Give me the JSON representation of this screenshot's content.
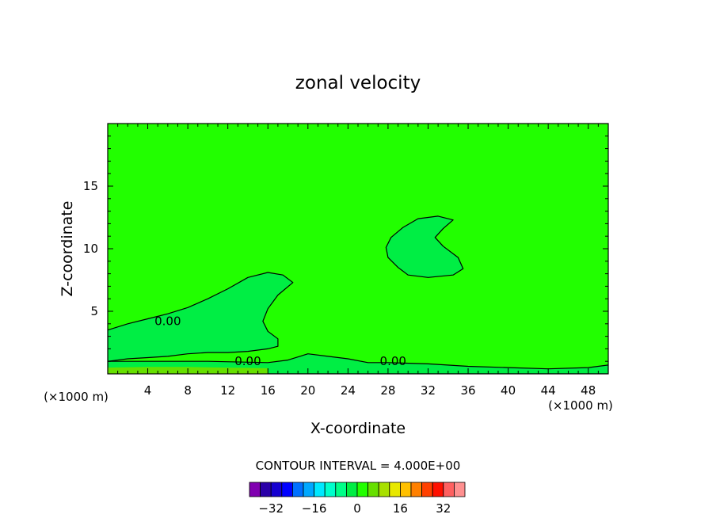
{
  "chart_data": {
    "type": "contour",
    "title": "zonal velocity",
    "xlabel": "X-coordinate",
    "ylabel": "Z-coordinate",
    "x_unit_left": "(×1000 m)",
    "x_unit_right": "(×1000 m)",
    "xlim": [
      0,
      50
    ],
    "ylim": [
      0,
      20
    ],
    "x_ticks": [
      4,
      8,
      12,
      16,
      20,
      24,
      28,
      32,
      36,
      40,
      44,
      48
    ],
    "y_ticks": [
      5,
      10,
      15
    ],
    "contour_labels": [
      {
        "text": "0.00",
        "x": 6,
        "y": 4.2
      },
      {
        "text": "0.00",
        "x": 14,
        "y": 1.0
      },
      {
        "text": "0.00",
        "x": 28.5,
        "y": 1.0
      }
    ],
    "regions": [
      {
        "name": "background",
        "value": 2,
        "color": "#22ff00"
      },
      {
        "name": "lower-left-lobe",
        "value": -2,
        "color": "#00ee44",
        "outline": [
          [
            0,
            3.5
          ],
          [
            2,
            4.0
          ],
          [
            4,
            4.4
          ],
          [
            6,
            4.8
          ],
          [
            8,
            5.3
          ],
          [
            10,
            6.0
          ],
          [
            12,
            6.8
          ],
          [
            14,
            7.7
          ],
          [
            16,
            8.1
          ],
          [
            17.5,
            7.9
          ],
          [
            18.5,
            7.3
          ],
          [
            17,
            6.3
          ],
          [
            16,
            5.2
          ],
          [
            15.5,
            4.2
          ],
          [
            16,
            3.4
          ],
          [
            17,
            2.8
          ],
          [
            17,
            2.2
          ],
          [
            16,
            2.0
          ],
          [
            14,
            1.8
          ],
          [
            12,
            1.7
          ],
          [
            10,
            1.7
          ],
          [
            8,
            1.6
          ],
          [
            6,
            1.4
          ],
          [
            4,
            1.3
          ],
          [
            2,
            1.2
          ],
          [
            0,
            1.0
          ]
        ]
      },
      {
        "name": "upper-middle-blob",
        "value": -2,
        "color": "#00ee44",
        "outline": [
          [
            28,
            9.3
          ],
          [
            27.8,
            10.1
          ],
          [
            28.3,
            10.9
          ],
          [
            29.5,
            11.7
          ],
          [
            31,
            12.4
          ],
          [
            33,
            12.6
          ],
          [
            34.5,
            12.3
          ],
          [
            33.5,
            11.6
          ],
          [
            32.7,
            10.9
          ],
          [
            33.5,
            10.2
          ],
          [
            35,
            9.3
          ],
          [
            35.5,
            8.4
          ],
          [
            34.5,
            7.9
          ],
          [
            32,
            7.7
          ],
          [
            30,
            7.9
          ],
          [
            29,
            8.5
          ]
        ]
      },
      {
        "name": "surface-band",
        "value": -2,
        "color": "#00ee44",
        "outline": [
          [
            0,
            1.0
          ],
          [
            10,
            1.0
          ],
          [
            16,
            0.9
          ],
          [
            18,
            1.1
          ],
          [
            20,
            1.6
          ],
          [
            22,
            1.4
          ],
          [
            24,
            1.2
          ],
          [
            26,
            0.9
          ],
          [
            28,
            0.9
          ],
          [
            32,
            0.8
          ],
          [
            36,
            0.6
          ],
          [
            40,
            0.5
          ],
          [
            44,
            0.4
          ],
          [
            48,
            0.5
          ],
          [
            50,
            0.7
          ],
          [
            50,
            0
          ],
          [
            0,
            0
          ]
        ]
      },
      {
        "name": "ground-strip",
        "value": 6,
        "color": "#66e000",
        "outline": [
          [
            0,
            0.5
          ],
          [
            4,
            0.55
          ],
          [
            8,
            0.55
          ],
          [
            12,
            0.5
          ],
          [
            16,
            0.45
          ],
          [
            16,
            0
          ],
          [
            0,
            0
          ]
        ]
      }
    ],
    "colorbar": {
      "label": "CONTOUR INTERVAL = 4.000E+00",
      "interval": 4,
      "tick_labels": [
        -32,
        -16,
        0,
        16,
        32
      ],
      "colors": [
        "#8000b0",
        "#2a00a8",
        "#1500d0",
        "#0000ff",
        "#0070ff",
        "#00a8ff",
        "#00e8ff",
        "#00ffcc",
        "#00ff88",
        "#00ee44",
        "#22ff00",
        "#66e000",
        "#a8e000",
        "#e8e800",
        "#ffc000",
        "#ff8000",
        "#ff4000",
        "#ff1000",
        "#ff6060",
        "#ff9090"
      ]
    },
    "grid": false,
    "legend": "bottom"
  }
}
